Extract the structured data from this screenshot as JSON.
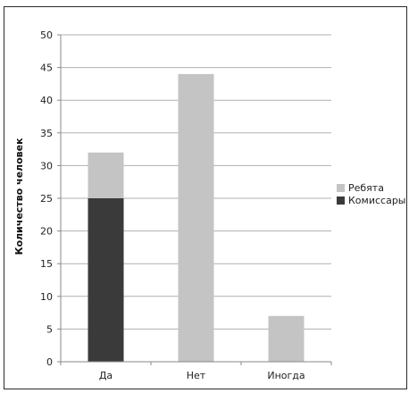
{
  "chart_data": {
    "type": "bar",
    "stacked": true,
    "title": "",
    "xlabel": "",
    "ylabel": "Количество человек",
    "categories": [
      "Да",
      "Нет",
      "Иногда"
    ],
    "series": [
      {
        "name": "Комиссары",
        "values": [
          25,
          0,
          0
        ],
        "color": "#3a3a3a"
      },
      {
        "name": "Ребята",
        "values": [
          7,
          44,
          7
        ],
        "color": "#c4c4c4"
      }
    ],
    "legend_order": [
      "Ребята",
      "Комиссары"
    ],
    "ylim": [
      0,
      50
    ],
    "ytick_step": 5,
    "grid": true,
    "legend_position": "right"
  }
}
